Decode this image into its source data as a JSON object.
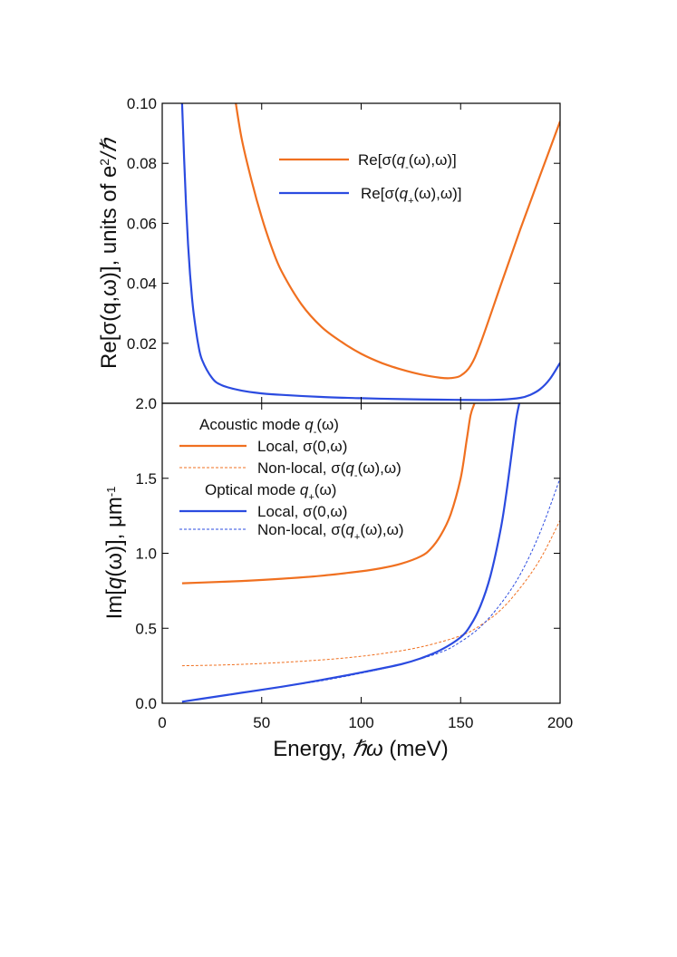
{
  "chart_data": [
    {
      "type": "line",
      "panel": "top",
      "ylabel": "Re[σ(q,ω)], units of e²/ℏ",
      "ylabel_parts": {
        "main": "Re[σ(q,ω)], units of e",
        "sup": "2",
        "tail": "/ℏ"
      },
      "ylim": [
        0.0,
        0.1
      ],
      "ytick_labels": [
        "0.02",
        "0.04",
        "0.06",
        "0.08",
        "0.10"
      ],
      "ytick_values": [
        0.02,
        0.04,
        0.06,
        0.08,
        0.1
      ],
      "xlim": [
        0,
        200
      ],
      "legend": {
        "placement": "top-center",
        "entries": [
          {
            "series": 0,
            "prefix": "Re[σ(",
            "var": "q",
            "sub": "-",
            "suffix": "(ω),ω)]"
          },
          {
            "series": 1,
            "prefix": "Re[σ(",
            "var": "q",
            "sub": "+",
            "suffix": "(ω),ω)]"
          }
        ]
      },
      "series": [
        {
          "name": "Re[σ(q-(ω),ω)]",
          "color": "#F07020",
          "style": "solid",
          "x": [
            37,
            40,
            45,
            50,
            55,
            60,
            70,
            80,
            90,
            100,
            110,
            120,
            130,
            140,
            145,
            150,
            155,
            160,
            170,
            180,
            190,
            200
          ],
          "y": [
            0.1,
            0.088,
            0.074,
            0.062,
            0.052,
            0.044,
            0.033,
            0.0255,
            0.0205,
            0.0165,
            0.0135,
            0.0113,
            0.0096,
            0.0085,
            0.0084,
            0.0092,
            0.0125,
            0.02,
            0.039,
            0.058,
            0.076,
            0.094
          ]
        },
        {
          "name": "Re[σ(q+(ω),ω)]",
          "color": "#2B4BE0",
          "style": "solid",
          "x": [
            10,
            11,
            12,
            13,
            14,
            15,
            16,
            18,
            20,
            25,
            30,
            40,
            50,
            60,
            80,
            100,
            120,
            140,
            160,
            170,
            180,
            185,
            190,
            195,
            200
          ],
          "y": [
            0.1,
            0.082,
            0.066,
            0.053,
            0.043,
            0.035,
            0.029,
            0.02,
            0.0145,
            0.0085,
            0.006,
            0.0042,
            0.0033,
            0.0028,
            0.0021,
            0.0017,
            0.0014,
            0.0012,
            0.0011,
            0.0012,
            0.0018,
            0.0028,
            0.0047,
            0.0082,
            0.0135
          ]
        }
      ]
    },
    {
      "type": "line",
      "panel": "bottom",
      "xlabel_prefix": "Energy, ",
      "xlabel_hbar": "ℏω",
      "xlabel_suffix": " (meV)",
      "ylabel_parts": {
        "pre": "Im[",
        "var": "q",
        "mid": "(ω)], μm",
        "sup": "-1"
      },
      "xlim": [
        0,
        200
      ],
      "ylim": [
        0.0,
        2.0
      ],
      "xtick_labels": [
        "0",
        "50",
        "100",
        "150",
        "200"
      ],
      "xtick_values": [
        0,
        50,
        100,
        150,
        200
      ],
      "ytick_labels": [
        "0.0",
        "0.5",
        "1.0",
        "1.5",
        "2.0"
      ],
      "ytick_values": [
        0.0,
        0.5,
        1.0,
        1.5,
        2.0
      ],
      "legend": {
        "placement": "top-left",
        "groups": [
          {
            "title_prefix": "Acoustic mode ",
            "title_var": "q",
            "title_sub": "-",
            "title_suffix": "(ω)",
            "entries": [
              {
                "series": 0,
                "prefix": "Local, σ(0,ω)"
              },
              {
                "series": 1,
                "prefix": "Non-local, σ(",
                "var": "q",
                "sub": "-",
                "suffix": "(ω),ω)"
              }
            ]
          },
          {
            "title_prefix": "Optical mode ",
            "title_var": "q",
            "title_sub": "+",
            "title_suffix": "(ω)",
            "entries": [
              {
                "series": 2,
                "prefix": "Local, σ(0,ω)"
              },
              {
                "series": 3,
                "prefix": "Non-local, σ(",
                "var": "q",
                "sub": "+",
                "suffix": "(ω),ω)"
              }
            ]
          }
        ]
      },
      "series": [
        {
          "name": "Local, σ(0,ω) (acoustic)",
          "color": "#F07020",
          "style": "solid",
          "x": [
            10,
            20,
            40,
            60,
            80,
            100,
            110,
            120,
            130,
            135,
            140,
            145,
            150,
            153,
            155,
            157
          ],
          "y": [
            0.8,
            0.805,
            0.815,
            0.83,
            0.85,
            0.88,
            0.9,
            0.93,
            0.98,
            1.03,
            1.12,
            1.26,
            1.5,
            1.75,
            1.92,
            2.0
          ]
        },
        {
          "name": "Non-local, σ(q-(ω),ω)",
          "color": "#F07020",
          "style": "dotted",
          "x": [
            10,
            30,
            50,
            70,
            90,
            110,
            130,
            150,
            160,
            170,
            180,
            190,
            200
          ],
          "y": [
            0.25,
            0.255,
            0.265,
            0.28,
            0.3,
            0.33,
            0.375,
            0.45,
            0.52,
            0.62,
            0.77,
            0.96,
            1.22
          ]
        },
        {
          "name": "Local, σ(0,ω) (optical)",
          "color": "#2B4BE0",
          "style": "solid",
          "x": [
            10,
            20,
            40,
            60,
            80,
            100,
            120,
            130,
            140,
            150,
            155,
            160,
            165,
            170,
            173,
            176,
            178,
            179.5
          ],
          "y": [
            0.01,
            0.03,
            0.07,
            0.11,
            0.155,
            0.205,
            0.26,
            0.3,
            0.355,
            0.44,
            0.52,
            0.65,
            0.85,
            1.15,
            1.4,
            1.7,
            1.9,
            2.0
          ]
        },
        {
          "name": "Non-local, σ(q+(ω),ω)",
          "color": "#2B4BE0",
          "style": "dotted",
          "x": [
            10,
            20,
            40,
            60,
            80,
            100,
            120,
            140,
            150,
            160,
            170,
            180,
            190,
            200
          ],
          "y": [
            0.01,
            0.03,
            0.07,
            0.11,
            0.15,
            0.2,
            0.26,
            0.34,
            0.41,
            0.51,
            0.66,
            0.86,
            1.14,
            1.5
          ]
        }
      ]
    }
  ]
}
